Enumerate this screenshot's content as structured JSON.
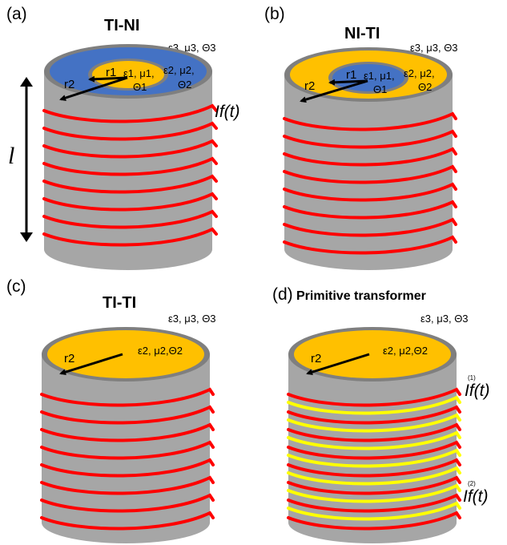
{
  "colors": {
    "blue": "#4472C4",
    "orange": "#FFC000",
    "cylinder_gray": "#A6A6A6",
    "rim_gray": "#7F7F7F",
    "coil_red": "#FF0000",
    "coil_yellow": "#FFFF00"
  },
  "panels": [
    {
      "label": "(a)",
      "title": "TI-NI",
      "outer_params": "ε3, μ3, Θ3",
      "region1_params_line1": "ε1, μ1,",
      "region1_params_line2": "Θ1",
      "region2_params_line1": "ε2, μ2,",
      "region2_params_line2": "Θ2",
      "r1": "r1",
      "r2": "r2",
      "current": "If(t)",
      "length": "l"
    },
    {
      "label": "(b)",
      "title": "NI-TI",
      "outer_params": "ε3, μ3, Θ3",
      "region1_params_line1": "ε1, μ1,",
      "region1_params_line2": "Θ1",
      "region2_params_line1": "ε2, μ2,",
      "region2_params_line2": "Θ2",
      "r1": "r1",
      "r2": "r2"
    },
    {
      "label": "(c)",
      "title": "TI-TI",
      "outer_params": "ε3, μ3, Θ3",
      "region2_params": "ε2, μ2,Θ2",
      "r2": "r2"
    },
    {
      "label": "(d)",
      "title": "Primitive transformer",
      "outer_params": "ε3, μ3, Θ3",
      "region2_params": "ε2, μ2,Θ2",
      "r2": "r2",
      "current1": "If(t)",
      "current1_sup": "(1)",
      "current2": "If(t)",
      "current2_sup": "(2)"
    }
  ]
}
